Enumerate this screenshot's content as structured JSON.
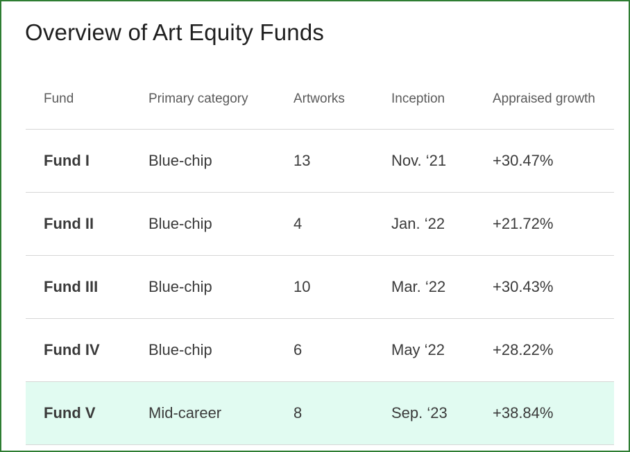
{
  "title": "Overview of Art Equity Funds",
  "table": {
    "headers": [
      "Fund",
      "Primary category",
      "Artworks",
      "Inception",
      "Appraised growth"
    ],
    "rows": [
      {
        "fund": "Fund I",
        "category": "Blue-chip",
        "artworks": "13",
        "inception": "Nov. ‘21",
        "growth": "+30.47%"
      },
      {
        "fund": "Fund II",
        "category": "Blue-chip",
        "artworks": "4",
        "inception": "Jan. ‘22",
        "growth": "+21.72%"
      },
      {
        "fund": "Fund III",
        "category": "Blue-chip",
        "artworks": "10",
        "inception": "Mar. ‘22",
        "growth": "+30.43%"
      },
      {
        "fund": "Fund IV",
        "category": "Blue-chip",
        "artworks": "6",
        "inception": "May ‘22",
        "growth": "+28.22%"
      },
      {
        "fund": "Fund V",
        "category": "Mid-career",
        "artworks": "8",
        "inception": "Sep. ‘23",
        "growth": "+38.84%",
        "highlighted": true
      }
    ]
  },
  "colors": {
    "border": "#2e7d32",
    "highlight_row": "#e1fbf1",
    "divider": "#d6d6d6"
  }
}
